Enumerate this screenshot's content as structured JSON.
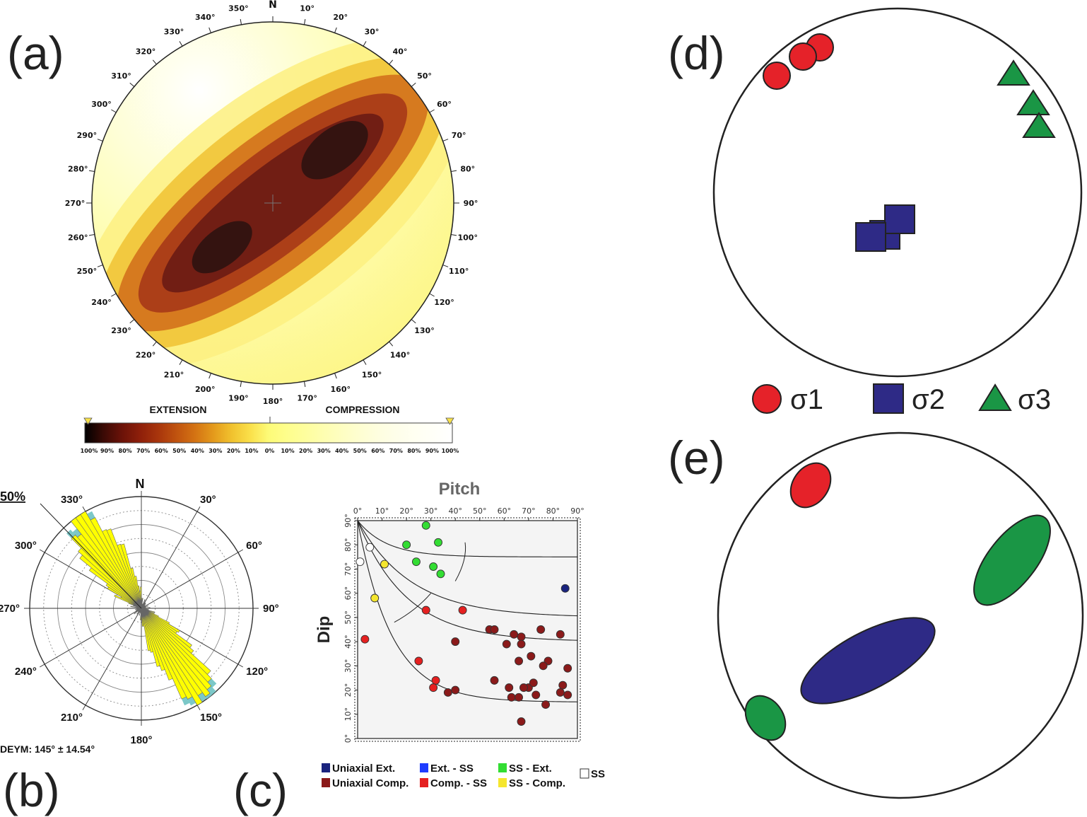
{
  "panel_labels": [
    "(a)",
    "(b)",
    "(c)",
    "(d)",
    "(e)"
  ],
  "panel_a": {
    "north_label": "N",
    "azimuth_labels": [
      "N",
      "10°",
      "20°",
      "30°",
      "40°",
      "50°",
      "60°",
      "70°",
      "80°",
      "90°",
      "100°",
      "110°",
      "120°",
      "130°",
      "140°",
      "150°",
      "160°",
      "170°",
      "180°",
      "190°",
      "200°",
      "210°",
      "220°",
      "230°",
      "240°",
      "250°",
      "260°",
      "270°",
      "280°",
      "290°",
      "300°",
      "310°",
      "320°",
      "330°",
      "340°",
      "350°"
    ],
    "colorbar": {
      "left_title": "EXTENSION",
      "right_title": "COMPRESSION",
      "ticks": [
        "100%",
        "90%",
        "80%",
        "70%",
        "60%",
        "50%",
        "40%",
        "30%",
        "20%",
        "10%",
        "0%",
        "10%",
        "20%",
        "30%",
        "40%",
        "50%",
        "60%",
        "70%",
        "80%",
        "90%",
        "100%"
      ],
      "colors": [
        "#000000",
        "#3a0a05",
        "#6a1208",
        "#8e1f0a",
        "#a8350c",
        "#c0530f",
        "#d47313",
        "#e49a1c",
        "#f1c22e",
        "#fae04a",
        "#fdfb78",
        "#fefe8c",
        "#fefe9e",
        "#fefeb1",
        "#fefec2",
        "#fefed2",
        "#fefee0",
        "#fefeea",
        "#fffff2",
        "#fffff8",
        "#ffffff"
      ],
      "marker_color": "#f7e04a"
    }
  },
  "panel_b": {
    "north_label": "N",
    "radius_label": "50%",
    "direction_labels": [
      "30°",
      "60°",
      "90°",
      "120°",
      "150°",
      "180°",
      "210°",
      "240°",
      "270°",
      "300°",
      "330°"
    ],
    "mean_text": "DEYM: 145° ± 14.54°",
    "petal_color": "#ffff00",
    "tip_color": "#7cc8c8"
  },
  "chart_data": [
    {
      "type": "scatter",
      "title": "Pitch",
      "xlabel": "Pitch",
      "ylabel": "Dip",
      "xlim": [
        0,
        90
      ],
      "ylim": [
        0,
        90
      ],
      "x_ticks": [
        "0°",
        "10°",
        "20°",
        "30°",
        "40°",
        "50°",
        "60°",
        "70°",
        "80°",
        "90°"
      ],
      "y_ticks": [
        "0°",
        "10°",
        "20°",
        "30°",
        "40°",
        "50°",
        "60°",
        "70°",
        "80°",
        "90°"
      ],
      "legend": [
        {
          "label": "Uniaxial Ext.",
          "color": "#1a237e"
        },
        {
          "label": "Ext. - SS",
          "color": "#1e3cff"
        },
        {
          "label": "SS - Ext.",
          "color": "#33dd33"
        },
        {
          "label": "SS",
          "color": "#ffffff"
        },
        {
          "label": "Uniaxial Comp.",
          "color": "#8b1a1a"
        },
        {
          "label": "Comp. - SS",
          "color": "#e52020"
        },
        {
          "label": "SS - Comp.",
          "color": "#f5e62e"
        }
      ],
      "series": [
        {
          "name": "Uniaxial Ext.",
          "color": "#1a237e",
          "points": [
            [
              85,
              62
            ]
          ]
        },
        {
          "name": "SS - Ext.",
          "color": "#33dd33",
          "points": [
            [
              28,
              88
            ],
            [
              33,
              81
            ],
            [
              20,
              80
            ],
            [
              24,
              73
            ],
            [
              31,
              71
            ],
            [
              34,
              68
            ]
          ]
        },
        {
          "name": "SS",
          "color": "#ffffff",
          "points": [
            [
              5,
              79
            ],
            [
              1,
              73
            ]
          ]
        },
        {
          "name": "SS - Comp.",
          "color": "#f5e62e",
          "points": [
            [
              11,
              72
            ],
            [
              7,
              58
            ]
          ]
        },
        {
          "name": "Comp. - SS",
          "color": "#e52020",
          "points": [
            [
              28,
              53
            ],
            [
              43,
              53
            ],
            [
              3,
              41
            ],
            [
              25,
              32
            ],
            [
              32,
              24
            ],
            [
              31,
              21
            ]
          ]
        },
        {
          "name": "Uniaxial Comp.",
          "color": "#8b1a1a",
          "points": [
            [
              54,
              45
            ],
            [
              56,
              45
            ],
            [
              64,
              43
            ],
            [
              67,
              42
            ],
            [
              75,
              45
            ],
            [
              83,
              43
            ],
            [
              67,
              39
            ],
            [
              61,
              39
            ],
            [
              40,
              40
            ],
            [
              71,
              34
            ],
            [
              66,
              32
            ],
            [
              78,
              32
            ],
            [
              76,
              30
            ],
            [
              86,
              29
            ],
            [
              56,
              24
            ],
            [
              62,
              21
            ],
            [
              70,
              21
            ],
            [
              72,
              23
            ],
            [
              84,
              22
            ],
            [
              68,
              21
            ],
            [
              63,
              17
            ],
            [
              66,
              17
            ],
            [
              73,
              18
            ],
            [
              83,
              19
            ],
            [
              86,
              18
            ],
            [
              37,
              19
            ],
            [
              40,
              20
            ],
            [
              77,
              14
            ],
            [
              67,
              7
            ]
          ]
        }
      ]
    }
  ],
  "panel_d": {
    "legend": [
      {
        "label": "σ1",
        "color": "#e52229",
        "shape": "circle"
      },
      {
        "label": "σ2",
        "color": "#2e2a86",
        "shape": "square"
      },
      {
        "label": "σ3",
        "color": "#1a9645",
        "shape": "triangle"
      }
    ]
  },
  "panel_e": {
    "colors": {
      "sigma1": "#e52229",
      "sigma2": "#2e2a86",
      "sigma3": "#1a9645"
    }
  }
}
